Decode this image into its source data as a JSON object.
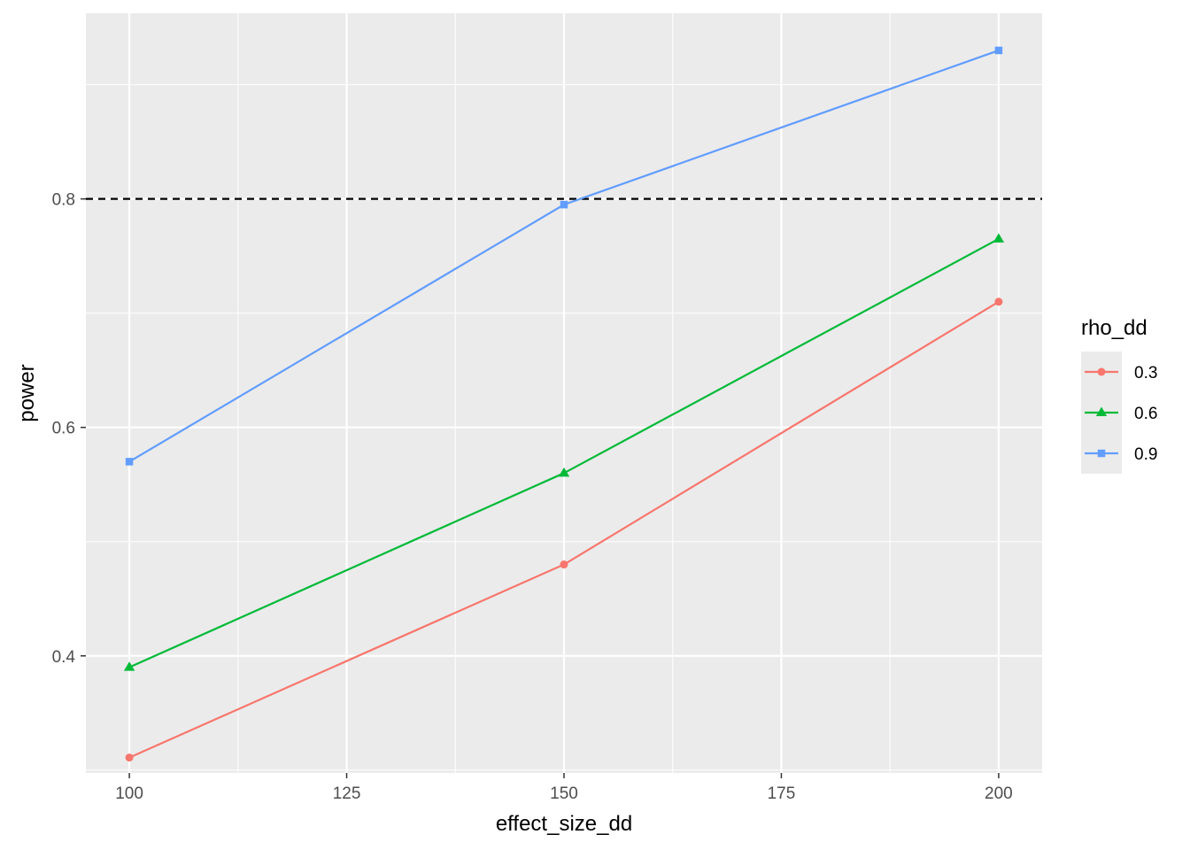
{
  "chart_data": {
    "type": "line",
    "xlabel": "effect_size_dd",
    "ylabel": "power",
    "xlim": [
      95,
      205
    ],
    "ylim": [
      0.2975,
      0.9625
    ],
    "x_ticks": [
      100,
      125,
      150,
      175,
      200
    ],
    "y_ticks": [
      0.4,
      0.6,
      0.8
    ],
    "grid": true,
    "reference_line": {
      "y": 0.8,
      "style": "dashed",
      "color": "#000000"
    },
    "legend": {
      "title": "rho_dd",
      "placement": "right"
    },
    "x": [
      100,
      150,
      200
    ],
    "series": [
      {
        "name": "0.3",
        "values": [
          0.311,
          0.48,
          0.71
        ],
        "color": "#F8766D",
        "marker": "circle"
      },
      {
        "name": "0.6",
        "values": [
          0.39,
          0.56,
          0.765
        ],
        "color": "#00BA38",
        "marker": "triangle"
      },
      {
        "name": "0.9",
        "values": [
          0.57,
          0.795,
          0.93
        ],
        "color": "#619CFF",
        "marker": "square"
      }
    ]
  }
}
